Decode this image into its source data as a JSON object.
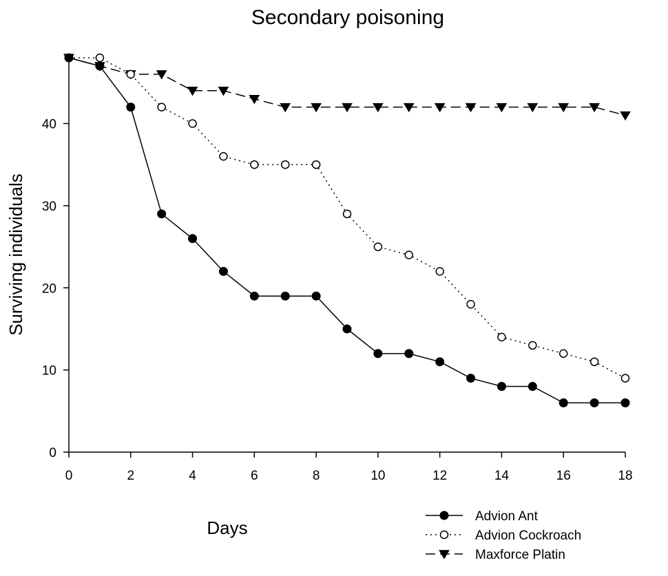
{
  "chart_data": {
    "type": "line",
    "title": "Secondary poisoning",
    "xlabel": "Days",
    "ylabel": "Surviving individuals",
    "xlim": [
      0,
      18
    ],
    "ylim": [
      0,
      48
    ],
    "x_ticks": [
      0,
      2,
      4,
      6,
      8,
      10,
      12,
      14,
      16,
      18
    ],
    "y_ticks": [
      0,
      10,
      20,
      30,
      40
    ],
    "grid": false,
    "legend_position": "bottom-right",
    "x": [
      0,
      1,
      2,
      3,
      4,
      5,
      6,
      7,
      8,
      9,
      10,
      11,
      12,
      13,
      14,
      15,
      16,
      17,
      18
    ],
    "series": [
      {
        "name": "Advion Ant",
        "line_style": "solid",
        "marker": "filled-circle",
        "values": [
          48,
          47,
          42,
          29,
          26,
          22,
          19,
          19,
          19,
          15,
          12,
          12,
          11,
          9,
          8,
          8,
          6,
          6,
          6
        ]
      },
      {
        "name": "Advion Cockroach",
        "line_style": "dotted",
        "marker": "open-circle",
        "values": [
          48,
          48,
          46,
          42,
          40,
          36,
          35,
          35,
          35,
          29,
          25,
          24,
          22,
          18,
          14,
          13,
          12,
          11,
          9
        ]
      },
      {
        "name": "Maxforce Platin",
        "line_style": "dashed",
        "marker": "filled-triangle-down",
        "values": [
          48,
          47,
          46,
          46,
          44,
          44,
          43,
          42,
          42,
          42,
          42,
          42,
          42,
          42,
          42,
          42,
          42,
          42,
          41
        ]
      }
    ],
    "colors": {
      "line": "#000000",
      "background": "#ffffff"
    }
  }
}
